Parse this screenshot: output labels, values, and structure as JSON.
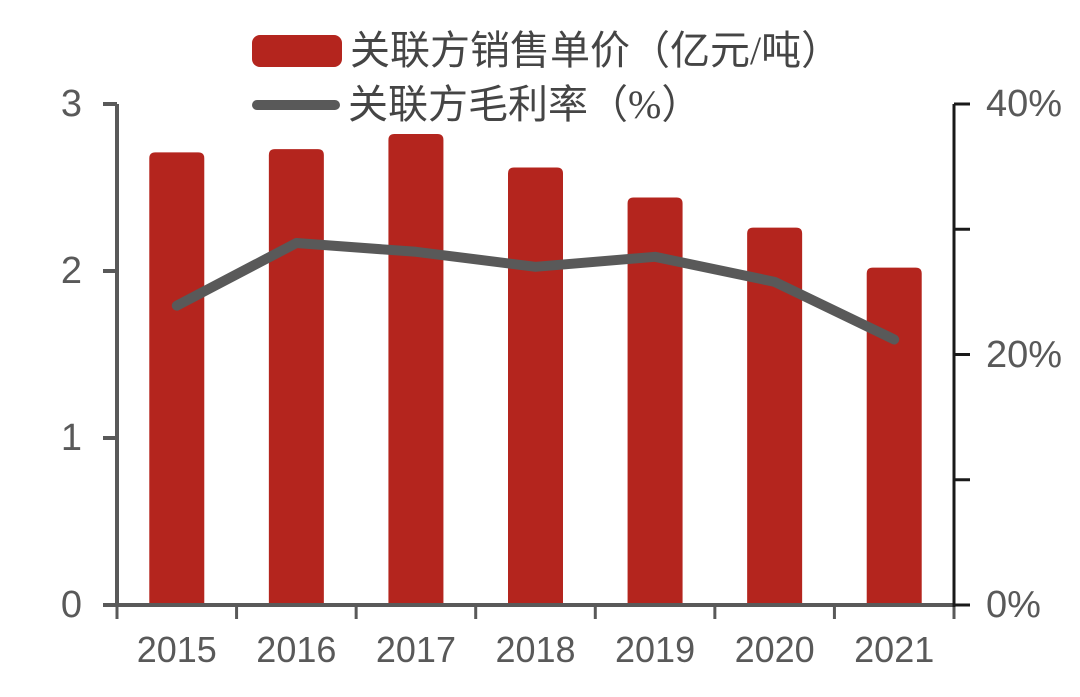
{
  "chart_data": {
    "type": "bar",
    "subtype": "combo-bar-line",
    "title": "",
    "categories": [
      "2015",
      "2016",
      "2017",
      "2018",
      "2019",
      "2020",
      "2021"
    ],
    "series": [
      {
        "name": "关联方销售单价（亿元/吨）",
        "type": "bar",
        "axis": "left",
        "color": "#b4251e",
        "values": [
          2.71,
          2.73,
          2.82,
          2.62,
          2.44,
          2.26,
          2.02
        ]
      },
      {
        "name": "关联方毛利率（%）",
        "type": "line",
        "axis": "right",
        "color": "#595959",
        "values": [
          23.9,
          28.9,
          28.2,
          27.0,
          27.8,
          25.8,
          21.2
        ]
      }
    ],
    "left_axis": {
      "min": 0,
      "max": 3,
      "tick_step": 1,
      "tick_labels": [
        "0",
        "1",
        "2",
        "3"
      ]
    },
    "right_axis": {
      "min": 0,
      "max": 40,
      "tick_step": 10,
      "tick_labels": [
        "0%",
        "",
        "20%",
        "",
        "40%"
      ]
    },
    "legend_position": "top-left",
    "grid": false
  },
  "colors": {
    "bar": "#b4251e",
    "line": "#595959",
    "axis": "#595959",
    "right_axis": "#1a1a1a",
    "tick_label": "#595959",
    "legend_text": "#454545",
    "background": "#ffffff"
  }
}
